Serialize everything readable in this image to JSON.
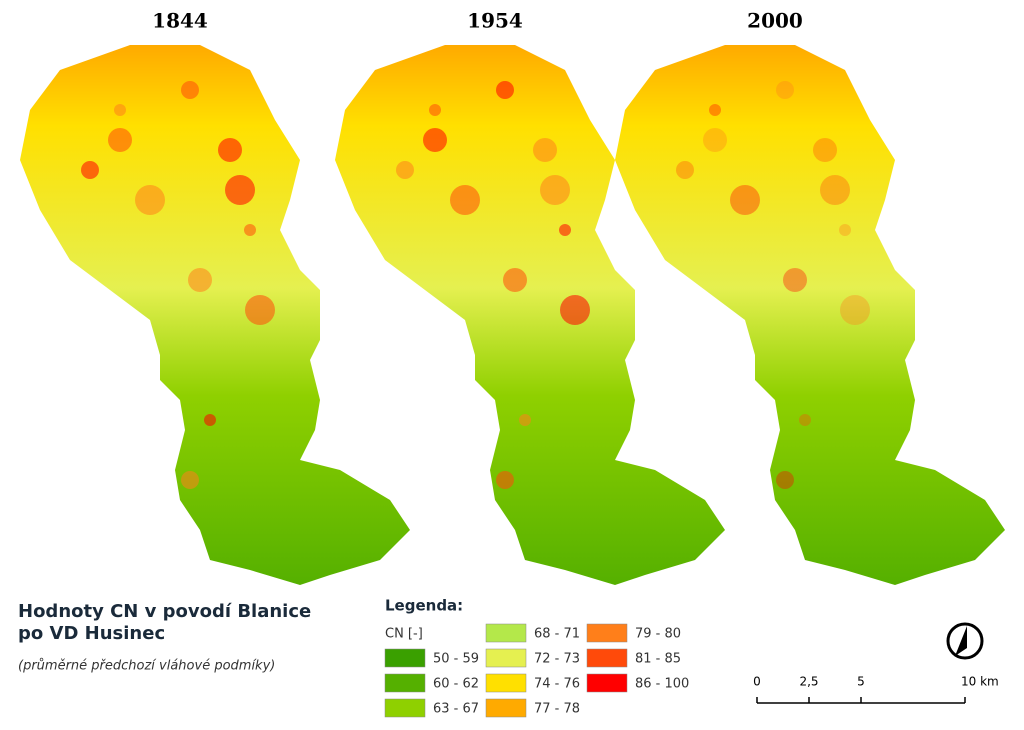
{
  "maps": [
    {
      "title": "1844"
    },
    {
      "title": "1954"
    },
    {
      "title": "2000"
    }
  ],
  "title": [
    "Hodnoty CN v  povodí Blanice",
    "po VD Husinec"
  ],
  "subtitle": "(průměrné předchozí vláhové podmíky)",
  "legend": {
    "title": "Legenda:",
    "unit": "CN [-]",
    "items": [
      {
        "label": "50 - 59",
        "color": "#3aa000"
      },
      {
        "label": "60 - 62",
        "color": "#55b000"
      },
      {
        "label": "63 - 67",
        "color": "#8fd000"
      },
      {
        "label": "68 - 71",
        "color": "#b4e84a"
      },
      {
        "label": "72 - 73",
        "color": "#e5f050"
      },
      {
        "label": "74 - 76",
        "color": "#ffe000"
      },
      {
        "label": "77 - 78",
        "color": "#ffaa00"
      },
      {
        "label": "79 - 80",
        "color": "#ff7f1a"
      },
      {
        "label": "81 - 85",
        "color": "#ff4a0a"
      },
      {
        "label": "86 - 100",
        "color": "#ff0000"
      }
    ]
  },
  "scale": {
    "ticks": [
      0,
      {
        "value": 2.5,
        "label": "2,5"
      },
      5,
      {
        "value": 10,
        "label": "10 km"
      }
    ]
  }
}
